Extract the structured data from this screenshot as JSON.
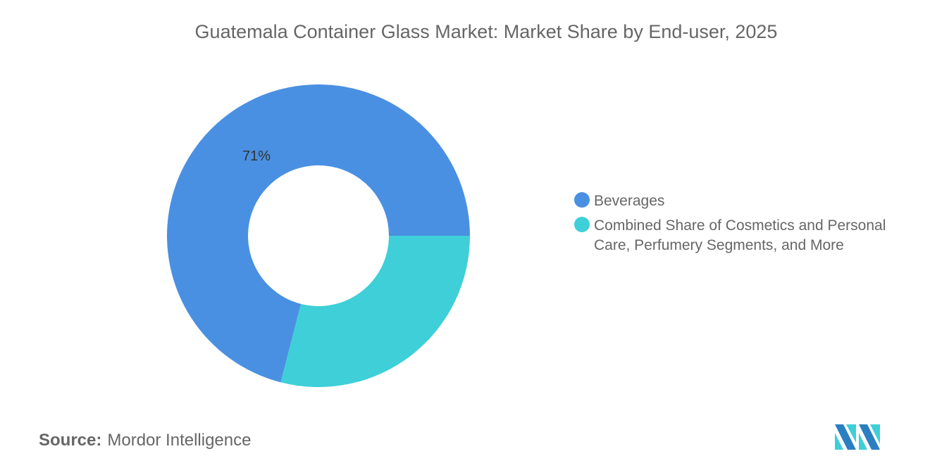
{
  "chart_data": {
    "type": "pie",
    "variant": "donut",
    "title": "Guatemala Container Glass Market: Market Share by End-user, 2025",
    "categories": [
      "Beverages",
      "Combined Share of Cosmetics and Personal Care, Perfumery Segments, and More"
    ],
    "values": [
      71,
      29
    ],
    "unit": "%",
    "data_labels": [
      "71%",
      ""
    ],
    "colors": [
      "#4a90e2",
      "#3ecfd8"
    ],
    "legend_position": "right"
  },
  "source": {
    "label": "Source:",
    "value": "Mordor Intelligence"
  },
  "logo": {
    "name": "mordor-intelligence-logo",
    "colors": [
      "#2a7fc1",
      "#3ecfd8"
    ]
  }
}
